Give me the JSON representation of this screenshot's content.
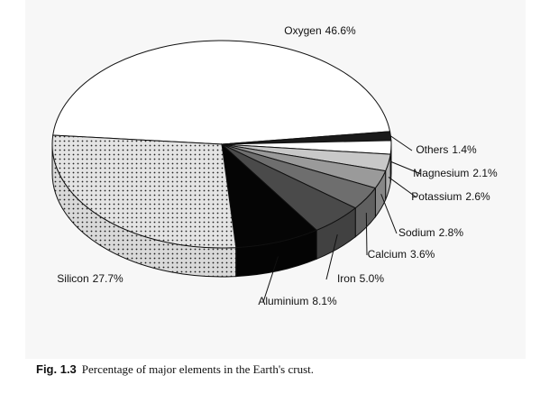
{
  "chart_data": {
    "type": "pie",
    "figure_label": "Fig. 1.3",
    "title": "Percentage of major elements in the Earth's crust.",
    "categories": [
      "Oxygen",
      "Others",
      "Magnesium",
      "Potassium",
      "Sodium",
      "Calcium",
      "Iron",
      "Aluminium",
      "Silicon"
    ],
    "values": [
      46.6,
      1.4,
      2.1,
      2.6,
      2.8,
      3.6,
      5.0,
      8.1,
      27.7
    ],
    "value_labels": [
      "46.6%",
      "1.4%",
      "2.1%",
      "2.6%",
      "2.8%",
      "3.6%",
      "5.0%",
      "8.1%",
      "27.7%"
    ],
    "colors": [
      "#ffffff",
      "#1a1a1a",
      "#ffffff",
      "#c8c8c8",
      "#9a9a9a",
      "#6e6e6e",
      "#4a4a4a",
      "#050505",
      "#e4e4e4"
    ]
  }
}
